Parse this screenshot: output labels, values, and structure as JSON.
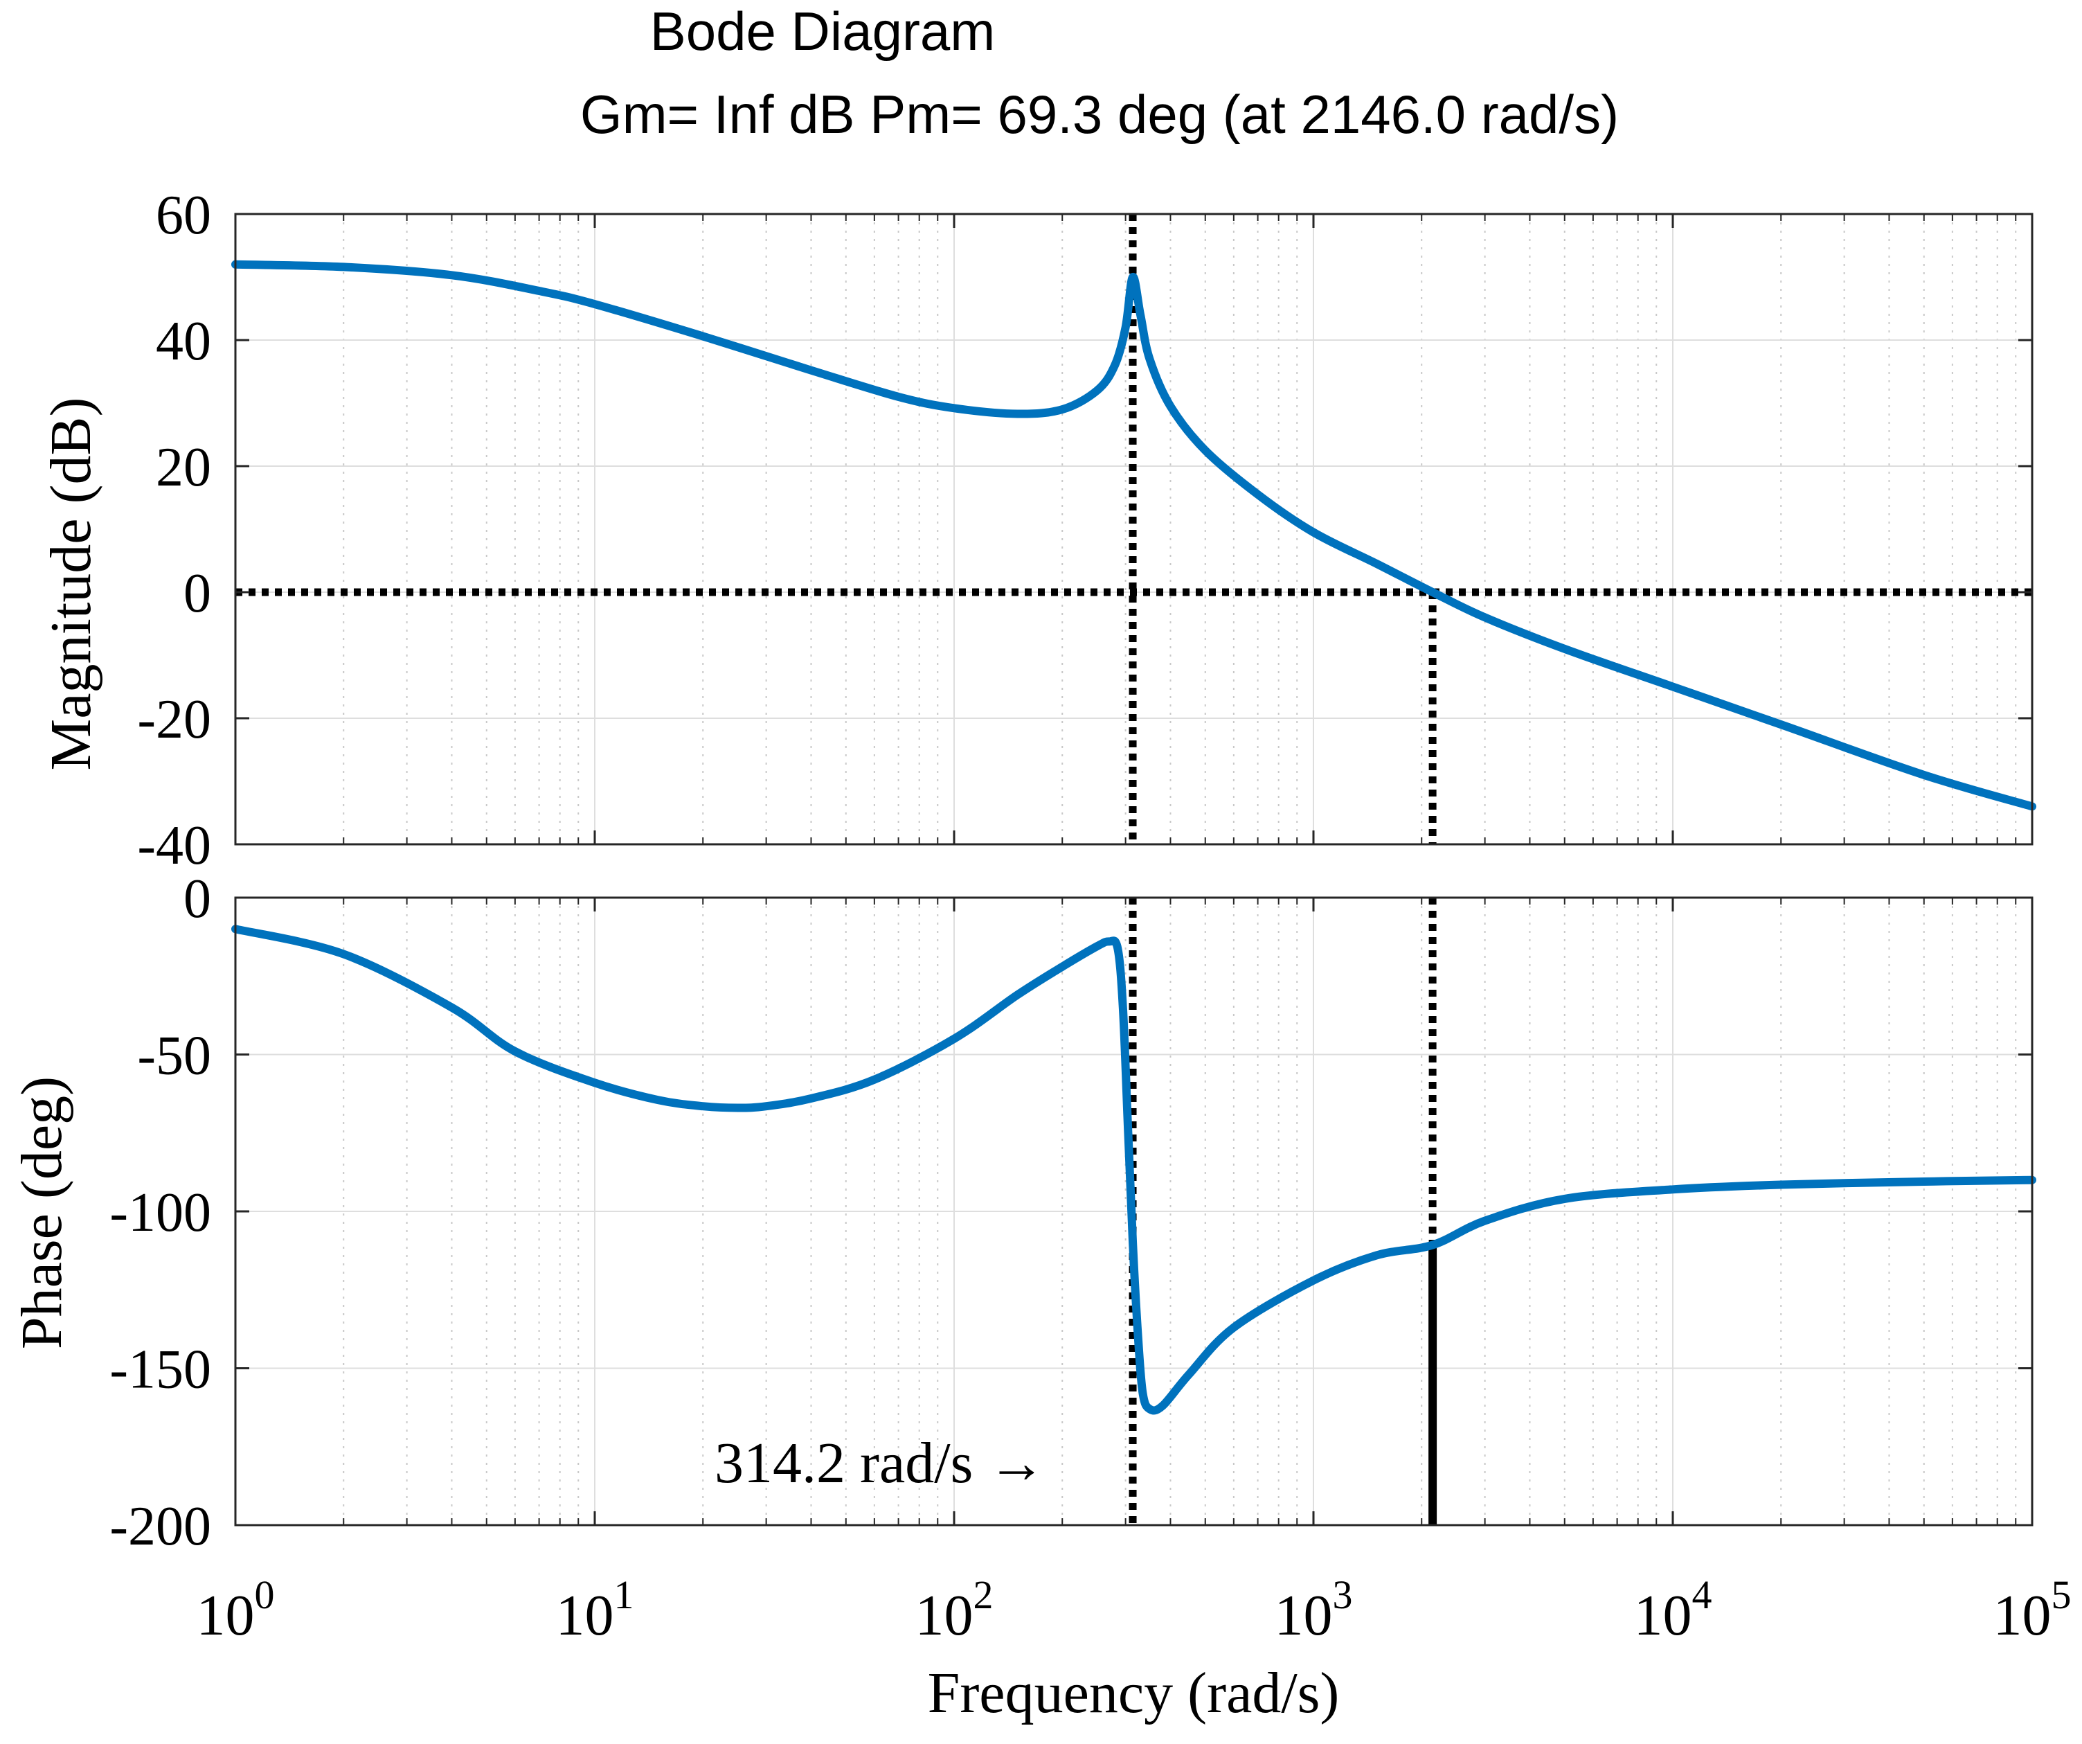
{
  "chart_data": {
    "type": "line",
    "title": "Bode Diagram",
    "subtitle": "Gm= Inf dB  Pm= 69.3 deg (at 2146.0 rad/s)",
    "xlabel": "Frequency (rad/s)",
    "xscale": "log",
    "xlim": [
      1,
      100000
    ],
    "x_ticks": [
      {
        "value": 1,
        "base": "10",
        "exp": "0"
      },
      {
        "value": 10,
        "base": "10",
        "exp": "1"
      },
      {
        "value": 100,
        "base": "10",
        "exp": "2"
      },
      {
        "value": 1000,
        "base": "10",
        "exp": "3"
      },
      {
        "value": 10000,
        "base": "10",
        "exp": "4"
      },
      {
        "value": 100000,
        "base": "10",
        "exp": "5"
      }
    ],
    "line_color": "#0072BD",
    "crossover_frequency": 2146.0,
    "resonance_frequency": 314.2,
    "annotation": "314.2 rad/s →",
    "panels": [
      {
        "name": "magnitude",
        "ylabel": "Magnitude (dB)",
        "ylim": [
          -40,
          60
        ],
        "y_ticks": [
          60,
          40,
          20,
          0,
          -20,
          -40
        ],
        "y_tick_labels": [
          "60",
          "40",
          "20",
          "0",
          "-20",
          "-40"
        ],
        "series": [
          {
            "name": "Magnitude",
            "x": [
              1,
              2,
              4,
              7,
              10,
              20,
              40,
              70,
              100,
              150,
              200,
              250,
              280,
              300,
              314.2,
              330,
              350,
              400,
              500,
              700,
              1000,
              1500,
              2146,
              3000,
              5000,
              10000,
              20000,
              50000,
              100000
            ],
            "y": [
              52,
              51.6,
              50.3,
              47.8,
              45.7,
              40.6,
              35.2,
              31,
              29.2,
              28.3,
              29,
              32,
              36,
              42,
              50,
              44,
              37,
              29.5,
              22.5,
              15.5,
              9.5,
              4.5,
              0,
              -4,
              -9,
              -15,
              -21,
              -29,
              -34
            ]
          }
        ]
      },
      {
        "name": "phase",
        "ylabel": "Phase (deg)",
        "ylim": [
          -200,
          0
        ],
        "y_ticks": [
          0,
          -50,
          -100,
          -150,
          -200
        ],
        "y_tick_labels": [
          "0",
          "-50",
          "-100",
          "-150",
          "-200"
        ],
        "series": [
          {
            "name": "Phase",
            "x": [
              1,
              2,
              4,
              6,
              10,
              15,
              20,
              25,
              30,
              40,
              60,
              100,
              150,
              200,
              250,
              270,
              285,
              295,
              305,
              314.2,
              325,
              335,
              350,
              380,
              450,
              600,
              1000,
              1500,
              2146,
              3000,
              5000,
              10000,
              20000,
              50000,
              100000
            ],
            "y": [
              -10,
              -18,
              -35,
              -49,
              -59,
              -64.5,
              -66.5,
              -67,
              -66.5,
              -64,
              -58,
              -45,
              -31,
              -22,
              -15.5,
              -14,
              -16,
              -35,
              -75,
              -110,
              -140,
              -158,
              -163,
              -162,
              -152,
              -137,
              -122,
              -114,
              -110.7,
              -103,
              -96,
              -93,
              -91.5,
              -90.5,
              -90
            ]
          }
        ]
      }
    ]
  }
}
